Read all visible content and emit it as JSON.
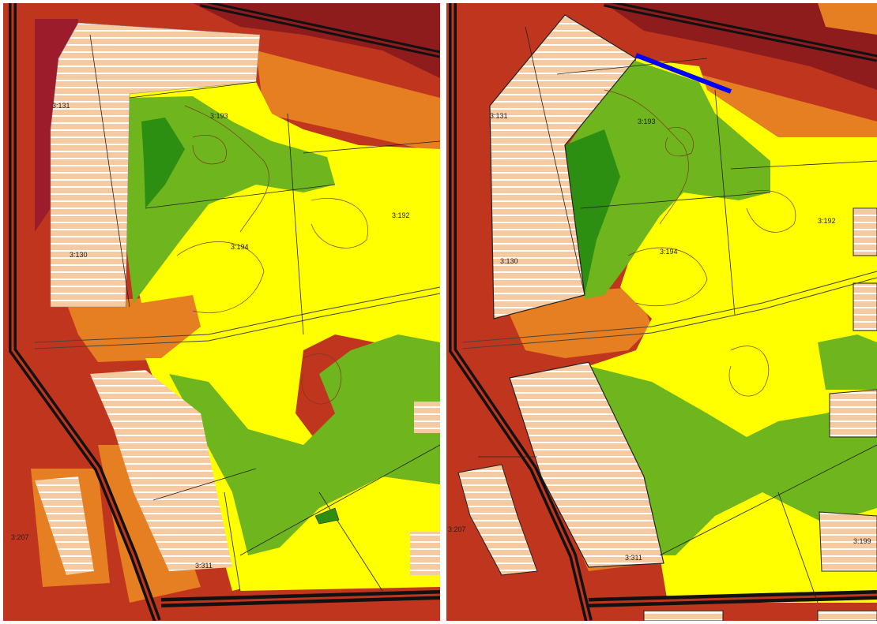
{
  "colors": {
    "dark_red": "#8e1c1c",
    "red": "#c0351e",
    "red_orange": "#d94f1c",
    "orange": "#e67e22",
    "yellow": "#ffff00",
    "light_green": "#6fb51e",
    "dark_green": "#2d8f12",
    "parcel_fill": "#f6caa0",
    "road": "#111111",
    "highlight": "#0000ff"
  },
  "left_map": {
    "labels": {
      "p131": "3:131",
      "p193": "3:193",
      "p130": "3:130",
      "p194": "3:194",
      "p192": "3:192",
      "p207": "3:207",
      "p311": "3:311"
    }
  },
  "right_map": {
    "labels": {
      "p131": "3:131",
      "p193": "3:193",
      "p130": "3:130",
      "p194": "3:194",
      "p192": "3:192",
      "p207": "3:207",
      "p311": "3:311",
      "p199": "3:199"
    }
  }
}
